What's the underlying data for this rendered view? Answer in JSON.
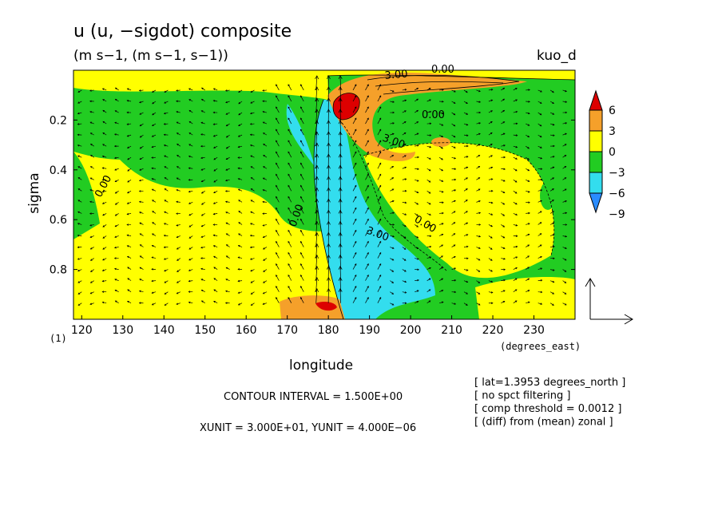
{
  "chart_data": {
    "type": "contour",
    "title": "u (u, −sigdot) composite",
    "subtitle": "(m s−1, (m s−1, s−1))",
    "case_label": "kuo_d",
    "xlabel": "longitude",
    "x_unit": "(degrees_east)",
    "ylabel": "sigma",
    "level_label": "(1)",
    "xlim": [
      118,
      240
    ],
    "ylim": [
      0.0,
      1.0
    ],
    "y_inverted": true,
    "x_ticks": [
      120,
      130,
      140,
      150,
      160,
      170,
      180,
      190,
      200,
      210,
      220,
      230
    ],
    "x_tick_labels": [
      "120",
      "130",
      "140",
      "150",
      "160",
      "170",
      "180",
      "190",
      "200",
      "210",
      "220",
      "230"
    ],
    "y_ticks": [
      0.2,
      0.4,
      0.6,
      0.8
    ],
    "y_tick_labels": [
      "0.2",
      "0.4",
      "0.6",
      "0.8"
    ],
    "colorbar": {
      "labels": [
        "6",
        "3",
        "0",
        "−3",
        "−6",
        "−9"
      ],
      "colors": [
        "#dd0000",
        "#f5a02a",
        "#ffff00",
        "#22cc22",
        "#33ddee",
        "#2a8cff"
      ]
    },
    "contour_labels": [
      "0.00",
      "3.00",
      "0.00",
      "3.00",
      "0.00",
      "0.00",
      "3.00",
      "0.00"
    ],
    "contour_interval": "CONTOUR INTERVAL = 1.500E+00",
    "vector_units": "XUNIT = 3.000E+01, YUNIT = 4.000E−06",
    "info": [
      "[ lat=1.3953 degrees_north ]",
      "[ no spct filtering ]",
      "[ comp threshold = 0.0012 ]",
      "[ (diff) from (mean) zonal ]"
    ],
    "regions": [
      {
        "value": -3,
        "color": "#22cc22",
        "x": [
          118,
          240
        ],
        "y": [
          0.02,
          1.0
        ]
      },
      {
        "value": 0,
        "color": "#ffff00",
        "note": "broad positive area west and south"
      },
      {
        "value": 6,
        "color": "#dd0000",
        "lon": 183,
        "sigma": 0.15
      },
      {
        "value": 3,
        "color": "#f5a02a",
        "lon": 178,
        "sigma": 0.95
      },
      {
        "value": -6,
        "color": "#33ddee",
        "lon": 186,
        "sigma": 0.7
      }
    ]
  }
}
